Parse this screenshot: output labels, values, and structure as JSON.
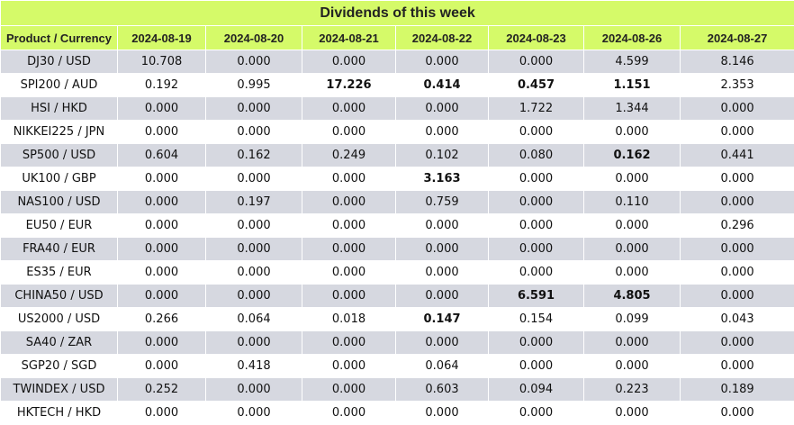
{
  "title": "Dividends of this week",
  "columns": [
    "Product / Currency",
    "2024-08-19",
    "2024-08-20",
    "2024-08-21",
    "2024-08-22",
    "2024-08-23",
    "2024-08-26",
    "2024-08-27"
  ],
  "rows": [
    {
      "product": "DJ30 / USD",
      "values": [
        "10.708",
        "0.000",
        "0.000",
        "0.000",
        "0.000",
        "4.599",
        "8.146"
      ],
      "bold": [
        false,
        false,
        false,
        false,
        false,
        false,
        false
      ]
    },
    {
      "product": "SPI200 / AUD",
      "values": [
        "0.192",
        "0.995",
        "17.226",
        "0.414",
        "0.457",
        "1.151",
        "2.353"
      ],
      "bold": [
        false,
        false,
        true,
        true,
        true,
        true,
        false
      ]
    },
    {
      "product": "HSI / HKD",
      "values": [
        "0.000",
        "0.000",
        "0.000",
        "0.000",
        "1.722",
        "1.344",
        "0.000"
      ],
      "bold": [
        false,
        false,
        false,
        false,
        false,
        false,
        false
      ]
    },
    {
      "product": "NIKKEI225 / JPN",
      "values": [
        "0.000",
        "0.000",
        "0.000",
        "0.000",
        "0.000",
        "0.000",
        "0.000"
      ],
      "bold": [
        false,
        false,
        false,
        false,
        false,
        false,
        false
      ]
    },
    {
      "product": "SP500 / USD",
      "values": [
        "0.604",
        "0.162",
        "0.249",
        "0.102",
        "0.080",
        "0.162",
        "0.441"
      ],
      "bold": [
        false,
        false,
        false,
        false,
        false,
        true,
        false
      ]
    },
    {
      "product": "UK100 / GBP",
      "values": [
        "0.000",
        "0.000",
        "0.000",
        "3.163",
        "0.000",
        "0.000",
        "0.000"
      ],
      "bold": [
        false,
        false,
        false,
        true,
        false,
        false,
        false
      ]
    },
    {
      "product": "NAS100 / USD",
      "values": [
        "0.000",
        "0.197",
        "0.000",
        "0.759",
        "0.000",
        "0.110",
        "0.000"
      ],
      "bold": [
        false,
        false,
        false,
        false,
        false,
        false,
        false
      ]
    },
    {
      "product": "EU50 / EUR",
      "values": [
        "0.000",
        "0.000",
        "0.000",
        "0.000",
        "0.000",
        "0.000",
        "0.296"
      ],
      "bold": [
        false,
        false,
        false,
        false,
        false,
        false,
        false
      ]
    },
    {
      "product": "FRA40 / EUR",
      "values": [
        "0.000",
        "0.000",
        "0.000",
        "0.000",
        "0.000",
        "0.000",
        "0.000"
      ],
      "bold": [
        false,
        false,
        false,
        false,
        false,
        false,
        false
      ]
    },
    {
      "product": "ES35 / EUR",
      "values": [
        "0.000",
        "0.000",
        "0.000",
        "0.000",
        "0.000",
        "0.000",
        "0.000"
      ],
      "bold": [
        false,
        false,
        false,
        false,
        false,
        false,
        false
      ]
    },
    {
      "product": "CHINA50 / USD",
      "values": [
        "0.000",
        "0.000",
        "0.000",
        "0.000",
        "6.591",
        "4.805",
        "0.000"
      ],
      "bold": [
        false,
        false,
        false,
        false,
        true,
        true,
        false
      ]
    },
    {
      "product": "US2000 / USD",
      "values": [
        "0.266",
        "0.064",
        "0.018",
        "0.147",
        "0.154",
        "0.099",
        "0.043"
      ],
      "bold": [
        false,
        false,
        false,
        true,
        false,
        false,
        false
      ]
    },
    {
      "product": "SA40 / ZAR",
      "values": [
        "0.000",
        "0.000",
        "0.000",
        "0.000",
        "0.000",
        "0.000",
        "0.000"
      ],
      "bold": [
        false,
        false,
        false,
        false,
        false,
        false,
        false
      ]
    },
    {
      "product": "SGP20 / SGD",
      "values": [
        "0.000",
        "0.418",
        "0.000",
        "0.064",
        "0.000",
        "0.000",
        "0.000"
      ],
      "bold": [
        false,
        false,
        false,
        false,
        false,
        false,
        false
      ]
    },
    {
      "product": "TWINDEX / USD",
      "values": [
        "0.252",
        "0.000",
        "0.000",
        "0.603",
        "0.094",
        "0.223",
        "0.189"
      ],
      "bold": [
        false,
        false,
        false,
        false,
        false,
        false,
        false
      ]
    },
    {
      "product": "HKTECH / HKD",
      "values": [
        "0.000",
        "0.000",
        "0.000",
        "0.000",
        "0.000",
        "0.000",
        "0.000"
      ],
      "bold": [
        false,
        false,
        false,
        false,
        false,
        false,
        false
      ]
    }
  ],
  "colors": {
    "header_bg": "#d5fa69",
    "row_odd_bg": "#d6d8e0",
    "row_even_bg": "#ffffff"
  }
}
